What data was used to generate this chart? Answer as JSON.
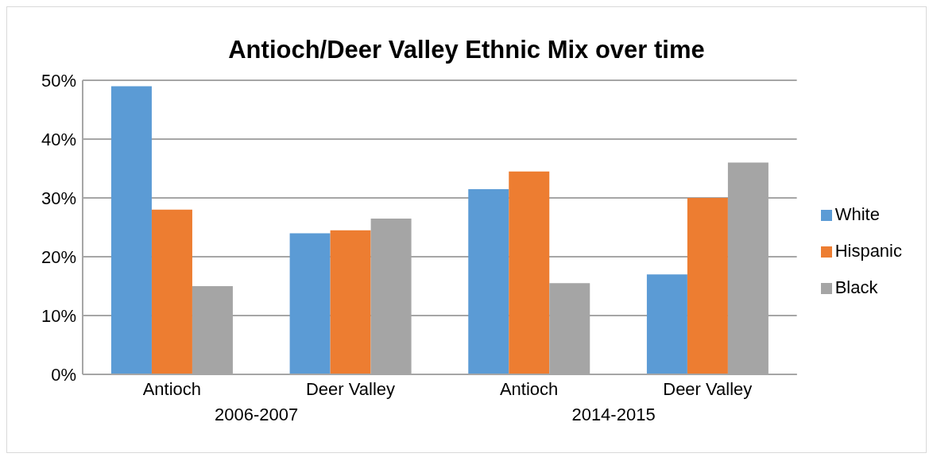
{
  "chart_data": {
    "type": "bar",
    "title": "Antioch/Deer Valley Ethnic Mix over time",
    "categories": [
      "Antioch",
      "Deer Valley",
      "Antioch",
      "Deer Valley"
    ],
    "annotations": [
      "2006-2007",
      "2014-2015"
    ],
    "series": [
      {
        "name": "White",
        "color": "#5b9bd5",
        "values": [
          49,
          24,
          31.5,
          17
        ]
      },
      {
        "name": "Hispanic",
        "color": "#ed7d31",
        "values": [
          28,
          24.5,
          34.5,
          30
        ]
      },
      {
        "name": "Black",
        "color": "#a5a5a5",
        "values": [
          15,
          26.5,
          15.5,
          36
        ]
      }
    ],
    "ylim": [
      0,
      50
    ],
    "yticks": [
      {
        "value": 0,
        "label": "0%"
      },
      {
        "value": 10,
        "label": "10%"
      },
      {
        "value": 20,
        "label": "20%"
      },
      {
        "value": 30,
        "label": "30%"
      },
      {
        "value": 40,
        "label": "40%"
      },
      {
        "value": 50,
        "label": "50%"
      }
    ],
    "grid": "y",
    "legend": "right"
  }
}
